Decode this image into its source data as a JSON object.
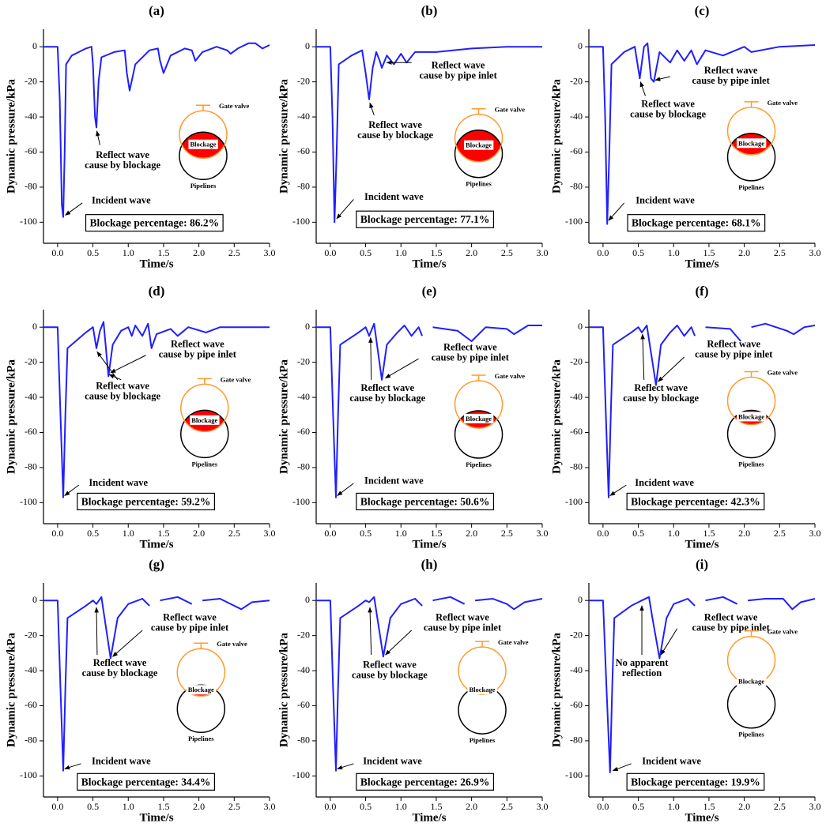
{
  "chart_data": [
    {
      "type": "line",
      "title": "(a)",
      "xlabel": "Time/s",
      "ylabel": "Dynamic pressure/kPa",
      "xlim": [
        -0.2,
        3.0
      ],
      "ylim": [
        -112,
        10
      ],
      "xticks": [
        {
          "value": 0,
          "label": "0.0"
        },
        0.5,
        {
          "value": 1,
          "label": "1.0"
        },
        1.5,
        {
          "value": 2,
          "label": "2.0"
        },
        2.5,
        {
          "value": 3,
          "label": "3.0"
        }
      ],
      "yticks": [
        -100,
        -80,
        -60,
        -40,
        -20,
        0
      ],
      "x": [
        -0.2,
        0,
        0.03,
        0.06,
        0.08,
        0.1,
        0.12,
        0.2,
        0.3,
        0.4,
        0.48,
        0.5,
        0.53,
        0.55,
        0.58,
        0.62,
        0.8,
        0.95,
        0.98,
        1.02,
        1.1,
        1.3,
        1.42,
        1.45,
        1.5,
        1.6,
        1.8,
        1.9,
        1.95,
        2.05,
        2.25,
        2.4,
        2.45,
        2.55,
        2.7,
        2.8,
        2.9,
        3.0
      ],
      "series": [
        {
          "color": "#1f1fff",
          "values": [
            0,
            0,
            -30,
            -90,
            -97,
            -60,
            -10,
            -5,
            -3,
            -1,
            0,
            -10,
            -40,
            -46,
            -20,
            -6,
            -3,
            -2,
            -15,
            -25,
            -10,
            -2,
            -1,
            -8,
            -15,
            -5,
            -1,
            -2,
            -8,
            -3,
            0,
            -2,
            -4,
            -1,
            2,
            2,
            -1,
            1
          ]
        }
      ],
      "annotations": [
        {
          "lines": [
            "Reflect wave",
            "cause by blockage"
          ]
        },
        {
          "lines": [
            "Incident wave"
          ]
        }
      ],
      "box_label": "Blockage percentage: 86.2%",
      "inset": {
        "valve": "Gate valve",
        "blockage": "Blockage",
        "pipe": "Pipelines"
      }
    },
    {
      "type": "line",
      "title": "(b)",
      "xlabel": "Time/s",
      "ylabel": "Dynamic pressure/kPa",
      "xlim": [
        -0.2,
        3.0
      ],
      "ylim": [
        -112,
        10
      ],
      "xticks": [
        {
          "value": 0,
          "label": "0.0"
        },
        0.5,
        {
          "value": 1,
          "label": "1.0"
        },
        1.5,
        {
          "value": 2,
          "label": "2.0"
        },
        2.5,
        {
          "value": 3,
          "label": "3.0"
        }
      ],
      "yticks": [
        -100,
        -80,
        -60,
        -40,
        -20,
        0
      ],
      "x": [
        -0.2,
        0,
        0.03,
        0.06,
        0.09,
        0.12,
        0.3,
        0.45,
        0.5,
        0.55,
        0.6,
        0.65,
        0.7,
        0.73,
        0.8,
        0.9,
        1.0,
        1.08,
        1.2,
        1.5,
        2.0,
        2.5,
        3.0
      ],
      "series": [
        {
          "color": "#1f1fff",
          "values": [
            0,
            0,
            -40,
            -100,
            -60,
            -10,
            -5,
            -2,
            -15,
            -30,
            -12,
            -3,
            -8,
            -12,
            -5,
            -10,
            -4,
            -9,
            -3,
            -3,
            -1,
            0,
            0
          ]
        }
      ],
      "annotations": [
        {
          "lines": [
            "Reflect wave",
            "cause by blockage"
          ]
        },
        {
          "lines": [
            "Reflect wave",
            "cause by pipe inlet"
          ]
        },
        {
          "lines": [
            "Incident wave"
          ]
        }
      ],
      "box_label": "Blockage percentage: 77.1%",
      "inset": {
        "valve": "Gate valve",
        "blockage": "Blockage",
        "pipe": "Pipelines"
      }
    },
    {
      "type": "line",
      "title": "(c)",
      "xlabel": "Time/s",
      "ylabel": "Dynamic pressure/kPa",
      "xlim": [
        -0.2,
        3.0
      ],
      "ylim": [
        -112,
        10
      ],
      "xticks": [
        {
          "value": 0,
          "label": "0.0"
        },
        0.5,
        {
          "value": 1,
          "label": "1.0"
        },
        1.5,
        {
          "value": 2,
          "label": "2.0"
        },
        2.5,
        {
          "value": 3,
          "label": "3.0"
        }
      ],
      "yticks": [
        -100,
        -80,
        -60,
        -40,
        -20,
        0
      ],
      "x": [
        -0.2,
        0,
        0.03,
        0.06,
        0.09,
        0.12,
        0.3,
        0.45,
        0.52,
        0.58,
        0.63,
        0.68,
        0.72,
        0.8,
        0.95,
        1.05,
        1.15,
        1.25,
        1.33,
        1.45,
        1.7,
        2.0,
        2.1,
        2.5,
        3.0
      ],
      "series": [
        {
          "color": "#1f1fff",
          "values": [
            0,
            0,
            -40,
            -101,
            -60,
            -10,
            -3,
            0,
            -18,
            0,
            2,
            -18,
            -20,
            -3,
            -9,
            -2,
            -8,
            -2,
            -10,
            -2,
            -5,
            0,
            -3,
            0,
            1
          ]
        }
      ],
      "annotations": [
        {
          "lines": [
            "Reflect wave",
            "cause by blockage"
          ]
        },
        {
          "lines": [
            "Reflect wave",
            "cause by pipe inlet"
          ]
        },
        {
          "lines": [
            "Incident wave"
          ]
        }
      ],
      "box_label": "Blockage percentage: 68.1%",
      "inset": {
        "valve": "Gate valve",
        "blockage": "Blockage",
        "pipe": "Pipelines"
      }
    },
    {
      "type": "line",
      "title": "(d)",
      "xlabel": "Time/s",
      "ylabel": "Dynamic pressure/kPa",
      "xlim": [
        -0.2,
        3.0
      ],
      "ylim": [
        -112,
        10
      ],
      "xticks": [
        {
          "value": 0,
          "label": "0.0"
        },
        0.5,
        {
          "value": 1,
          "label": "1.0"
        },
        1.5,
        {
          "value": 2,
          "label": "2.0"
        },
        2.5,
        {
          "value": 3,
          "label": "3.0"
        }
      ],
      "yticks": [
        -100,
        -80,
        -60,
        -40,
        -20,
        0
      ],
      "x": [
        -0.2,
        0,
        0.04,
        0.08,
        0.11,
        0.14,
        0.4,
        0.5,
        0.55,
        0.6,
        0.65,
        0.72,
        0.78,
        0.9,
        1.0,
        1.05,
        1.1,
        1.2,
        1.28,
        1.33,
        1.4,
        1.6,
        1.7,
        1.85,
        2.1,
        2.3,
        3.0
      ],
      "series": [
        {
          "color": "#1f1fff",
          "values": [
            0,
            0,
            -50,
            -97,
            -50,
            -12,
            -3,
            0,
            -12,
            -2,
            3,
            -28,
            -10,
            -2,
            0,
            -5,
            1,
            -5,
            2,
            -12,
            -4,
            -1,
            -5,
            0,
            -3,
            0,
            0
          ]
        }
      ],
      "annotations": [
        {
          "lines": [
            "Reflect wave",
            "cause by pipe inlet"
          ]
        },
        {
          "lines": [
            "Reflect wave",
            "cause by blockage"
          ]
        },
        {
          "lines": [
            "Incident wave"
          ]
        }
      ],
      "box_label": "Blockage percentage: 59.2%",
      "inset": {
        "valve": "Gate valve",
        "blockage": "Blockage",
        "pipe": "Pipelines"
      }
    },
    {
      "type": "line",
      "title": "(e)",
      "xlabel": "Time/s",
      "ylabel": "Dynamic pressure/kPa",
      "xlim": [
        -0.2,
        3.0
      ],
      "ylim": [
        -112,
        10
      ],
      "xticks": [
        {
          "value": 0,
          "label": "0.0"
        },
        0.5,
        {
          "value": 1,
          "label": "1.0"
        },
        1.5,
        {
          "value": 2,
          "label": "2.0"
        },
        2.5,
        {
          "value": 3,
          "label": "3.0"
        }
      ],
      "yticks": [
        -100,
        -80,
        -60,
        -40,
        -20,
        0
      ],
      "x": [
        -0.2,
        0,
        0.04,
        0.08,
        0.11,
        0.14,
        0.4,
        0.5,
        0.55,
        0.62,
        0.73,
        0.8,
        0.95,
        1.05,
        1.15,
        1.25,
        1.3,
        1.37,
        1.45,
        1.8,
        2.0,
        2.2,
        2.5,
        2.6,
        2.8,
        3.0
      ],
      "series": [
        {
          "color": "#1f1fff",
          "values": [
            0,
            0,
            -50,
            -97,
            -50,
            -10,
            -3,
            0,
            -5,
            2,
            -30,
            -10,
            -3,
            1,
            -5,
            0,
            -5,
            null,
            0,
            -2,
            -8,
            0,
            -1,
            -4,
            1,
            1
          ]
        }
      ],
      "annotations": [
        {
          "lines": [
            "Reflect wave",
            "cause by pipe inlet"
          ]
        },
        {
          "lines": [
            "Reflect wave",
            "cause by blockage"
          ]
        },
        {
          "lines": [
            "Incident wave"
          ]
        }
      ],
      "box_label": "Blockage percentage: 50.6%",
      "inset": {
        "valve": "Gate valve",
        "blockage": "Blockage",
        "pipe": "Pipelines"
      }
    },
    {
      "type": "line",
      "title": "(f)",
      "xlabel": "Time/s",
      "ylabel": "Dynamic pressure/kPa",
      "xlim": [
        -0.2,
        3.0
      ],
      "ylim": [
        -112,
        10
      ],
      "xticks": [
        {
          "value": 0,
          "label": "0.0"
        },
        0.5,
        {
          "value": 1,
          "label": "1.0"
        },
        1.5,
        {
          "value": 2,
          "label": "2.0"
        },
        2.5,
        {
          "value": 3,
          "label": "3.0"
        }
      ],
      "yticks": [
        -100,
        -80,
        -60,
        -40,
        -20,
        0
      ],
      "x": [
        -0.2,
        0,
        0.04,
        0.08,
        0.11,
        0.14,
        0.4,
        0.5,
        0.55,
        0.62,
        0.75,
        0.82,
        0.95,
        1.05,
        1.15,
        1.25,
        1.3,
        1.37,
        1.45,
        1.8,
        1.95,
        2.0,
        2.1,
        2.3,
        2.6,
        2.7,
        2.85,
        3.0
      ],
      "series": [
        {
          "color": "#1f1fff",
          "values": [
            0,
            0,
            -50,
            -97,
            -50,
            -10,
            -3,
            0,
            -3,
            1,
            -33,
            -10,
            -3,
            1,
            -5,
            0,
            -5,
            null,
            0,
            -1,
            -8,
            null,
            0,
            2,
            -2,
            -4,
            0,
            1
          ]
        }
      ],
      "annotations": [
        {
          "lines": [
            "Reflect wave",
            "cause by pipe inlet"
          ]
        },
        {
          "lines": [
            "Reflect wave",
            "cause by blockage"
          ]
        },
        {
          "lines": [
            "Incident wave"
          ]
        }
      ],
      "box_label": "Blockage percentage: 42.3%",
      "inset": {
        "valve": "Gate valve",
        "blockage": "Blockage",
        "pipe": "Pipelines"
      }
    },
    {
      "type": "line",
      "title": "(g)",
      "xlabel": "Time/s",
      "ylabel": "Dynamic pressure/kPa",
      "xlim": [
        -0.2,
        3.0
      ],
      "ylim": [
        -112,
        10
      ],
      "xticks": [
        {
          "value": 0,
          "label": "0.0"
        },
        0.5,
        {
          "value": 1,
          "label": "1.0"
        },
        1.5,
        {
          "value": 2,
          "label": "2.0"
        },
        2.5,
        {
          "value": 3,
          "label": "3.0"
        }
      ],
      "yticks": [
        -100,
        -80,
        -60,
        -40,
        -20,
        0
      ],
      "x": [
        -0.2,
        0,
        0.04,
        0.08,
        0.11,
        0.14,
        0.4,
        0.5,
        0.55,
        0.62,
        0.75,
        0.85,
        1.0,
        1.2,
        1.3,
        1.36,
        1.45,
        1.7,
        1.9,
        1.98,
        2.05,
        2.3,
        2.5,
        2.6,
        2.75,
        3.0
      ],
      "series": [
        {
          "color": "#1f1fff",
          "values": [
            0,
            0,
            -50,
            -97,
            -50,
            -10,
            -3,
            0,
            -2,
            2,
            -33,
            -10,
            -2,
            1,
            -3,
            null,
            0,
            2,
            -2,
            null,
            0,
            1,
            -3,
            -5,
            -1,
            0
          ]
        }
      ],
      "annotations": [
        {
          "lines": [
            "Reflect wave",
            "cause by pipe inlet"
          ]
        },
        {
          "lines": [
            "Reflect wave",
            "cause by blockage"
          ]
        },
        {
          "lines": [
            "Incident wave"
          ]
        }
      ],
      "box_label": "Blockage percentage: 34.4%",
      "inset": {
        "valve": "Gate valve",
        "blockage": "Blockage",
        "pipe": "Pipelines"
      }
    },
    {
      "type": "line",
      "title": "(h)",
      "xlabel": "Time/s",
      "ylabel": "Dynamic pressure/kPa",
      "xlim": [
        -0.2,
        3.0
      ],
      "ylim": [
        -112,
        10
      ],
      "xticks": [
        {
          "value": 0,
          "label": "0.0"
        },
        0.5,
        {
          "value": 1,
          "label": "1.0"
        },
        1.5,
        {
          "value": 2,
          "label": "2.0"
        },
        2.5,
        {
          "value": 3,
          "label": "3.0"
        }
      ],
      "yticks": [
        -100,
        -80,
        -60,
        -40,
        -20,
        0
      ],
      "x": [
        -0.2,
        0,
        0.04,
        0.08,
        0.11,
        0.14,
        0.4,
        0.5,
        0.55,
        0.62,
        0.75,
        0.85,
        1.0,
        1.2,
        1.3,
        1.36,
        1.45,
        1.7,
        1.9,
        1.98,
        2.05,
        2.3,
        2.5,
        2.6,
        2.75,
        3.0
      ],
      "series": [
        {
          "color": "#1f1fff",
          "values": [
            0,
            0,
            -50,
            -97,
            -50,
            -10,
            -3,
            0,
            -1,
            2,
            -32,
            -10,
            -2,
            1,
            -3,
            null,
            0,
            2,
            -2,
            null,
            0,
            1,
            -2,
            -5,
            -1,
            1
          ]
        }
      ],
      "annotations": [
        {
          "lines": [
            "Reflect wave",
            "cause by pipe inlet"
          ]
        },
        {
          "lines": [
            "Reflect wave",
            "cause by blockage"
          ]
        },
        {
          "lines": [
            "Incident wave"
          ]
        }
      ],
      "box_label": "Blockage percentage: 26.9%",
      "inset": {
        "valve": "Gate valve",
        "blockage": "Blockage",
        "pipe": "Pipelines"
      }
    },
    {
      "type": "line",
      "title": "(i)",
      "xlabel": "Time/s",
      "ylabel": "Dynamic pressure/kPa",
      "xlim": [
        -0.2,
        3.0
      ],
      "ylim": [
        -112,
        10
      ],
      "xticks": [
        {
          "value": 0,
          "label": "0.0"
        },
        0.5,
        {
          "value": 1,
          "label": "1.0"
        },
        1.5,
        {
          "value": 2,
          "label": "2.0"
        },
        2.5,
        {
          "value": 3,
          "label": "3.0"
        }
      ],
      "yticks": [
        -100,
        -80,
        -60,
        -40,
        -20,
        0
      ],
      "x": [
        -0.2,
        0,
        0.05,
        0.1,
        0.13,
        0.16,
        0.4,
        0.55,
        0.65,
        0.7,
        0.8,
        0.9,
        1.0,
        1.2,
        1.3,
        1.36,
        1.45,
        1.7,
        1.9,
        1.98,
        2.05,
        2.3,
        2.55,
        2.68,
        2.8,
        3.0
      ],
      "series": [
        {
          "color": "#1f1fff",
          "values": [
            0,
            0,
            -50,
            -98,
            -50,
            -10,
            -3,
            0,
            2,
            -10,
            -33,
            -10,
            -2,
            1,
            -3,
            null,
            0,
            2,
            -2,
            null,
            0,
            1,
            1,
            -5,
            -1,
            1
          ]
        }
      ],
      "annotations": [
        {
          "lines": [
            "Reflect wave",
            "cause by pipe inlet"
          ]
        },
        {
          "lines": [
            "No apparent",
            "reflection"
          ]
        },
        {
          "lines": [
            "Incident wave"
          ]
        }
      ],
      "box_label": "Blockage percentage: 19.9%",
      "inset": {
        "valve": "Gate valve",
        "blockage": "Blockage",
        "pipe": "Pipelines"
      }
    }
  ]
}
